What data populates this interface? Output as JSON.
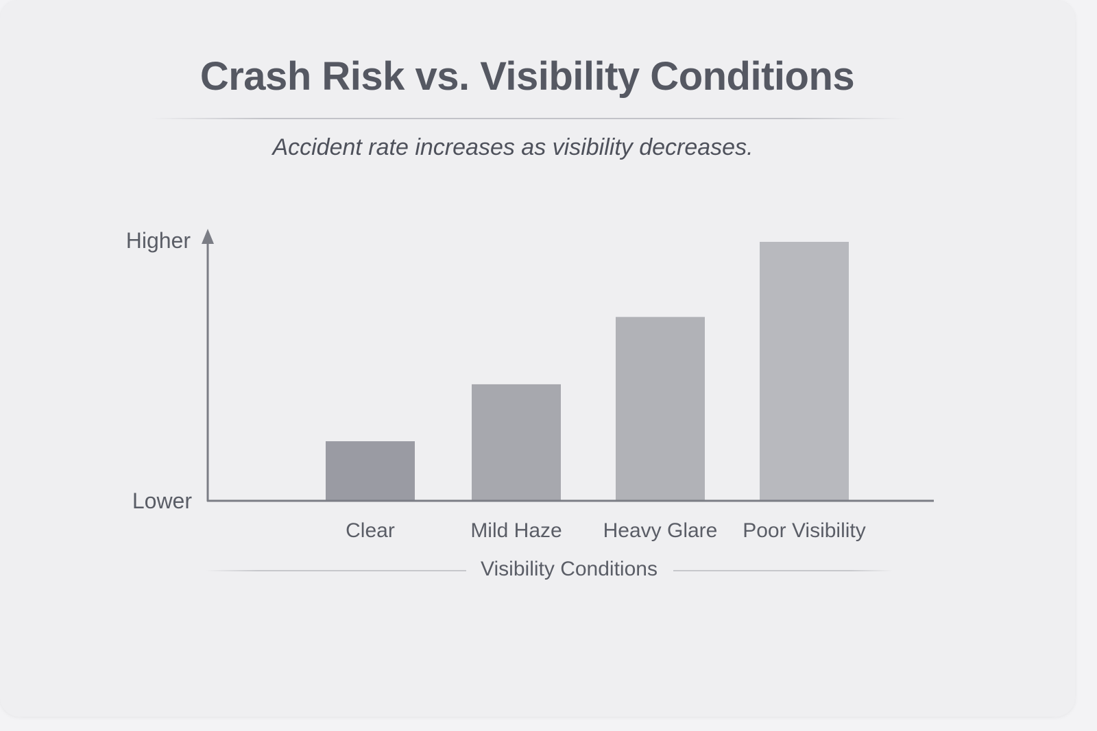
{
  "chart_data": {
    "type": "bar",
    "title": "Crash Risk vs. Visibility Conditions",
    "subtitle": "Accident rate increases as visibility decreases.",
    "xlabel": "Visibility Conditions",
    "ylabel": "",
    "y_high_label": "Higher",
    "y_low_label": "Lower",
    "categories": [
      "Clear",
      "Mild Haze",
      "Heavy Glare",
      "Poor Visibility"
    ],
    "values": [
      23,
      45,
      71,
      100
    ],
    "ylim": [
      0,
      100
    ],
    "grid": false,
    "legend": "none",
    "colors": {
      "bars": [
        "#9a9ba3",
        "#a7a8ae",
        "#b1b2b7",
        "#b8b9be"
      ],
      "axis": "#7b7d85",
      "text": "#5a5d66"
    }
  }
}
